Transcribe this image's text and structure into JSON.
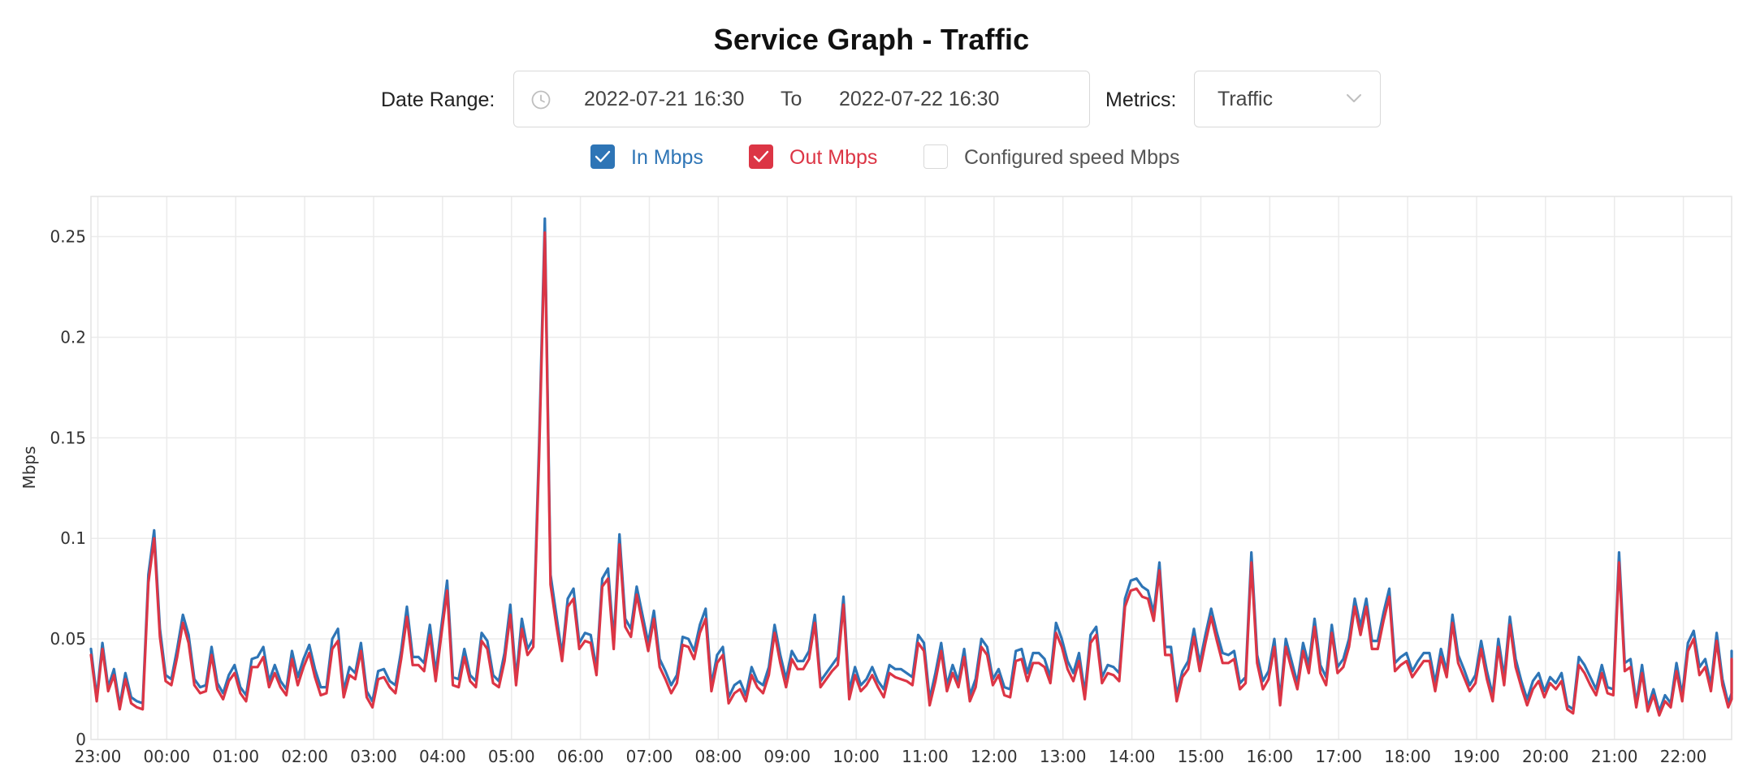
{
  "title": "Service Graph - Traffic",
  "controls": {
    "date_range_label": "Date Range:",
    "start_date": "2022-07-21 16:30",
    "to_label": "To",
    "end_date": "2022-07-22 16:30",
    "metrics_label": "Metrics:",
    "metrics_value": "Traffic"
  },
  "legend": [
    {
      "label": "In Mbps",
      "checked": true,
      "color": "#2e75b6"
    },
    {
      "label": "Out Mbps",
      "checked": true,
      "color": "#dc3545"
    },
    {
      "label": "Configured speed Mbps",
      "checked": false,
      "color": "#d9d9d9"
    }
  ],
  "colors": {
    "in": "#2e75b6",
    "out": "#dc3545",
    "grid": "#ebebeb"
  },
  "chart_data": {
    "type": "line",
    "title": "Service Graph - Traffic",
    "xlabel": "",
    "ylabel": "Mbps",
    "ylim": [
      0,
      0.27
    ],
    "yticks": [
      {
        "value": 0,
        "label": "0"
      },
      {
        "value": 0.05,
        "label": "0.05"
      },
      {
        "value": 0.1,
        "label": "0.1"
      },
      {
        "value": 0.15,
        "label": "0.15"
      },
      {
        "value": 0.2,
        "label": "0.2"
      },
      {
        "value": 0.25,
        "label": "0.25"
      }
    ],
    "x_start_hour": -1.1,
    "x_end_hour": 22.7,
    "x_step_minutes": 5,
    "xticks": [
      {
        "hour": -1,
        "label": "23:00"
      },
      {
        "hour": 0,
        "label": "00:00"
      },
      {
        "hour": 1,
        "label": "01:00"
      },
      {
        "hour": 2,
        "label": "02:00"
      },
      {
        "hour": 3,
        "label": "03:00"
      },
      {
        "hour": 4,
        "label": "04:00"
      },
      {
        "hour": 5,
        "label": "05:00"
      },
      {
        "hour": 6,
        "label": "06:00"
      },
      {
        "hour": 7,
        "label": "07:00"
      },
      {
        "hour": 8,
        "label": "08:00"
      },
      {
        "hour": 9,
        "label": "09:00"
      },
      {
        "hour": 10,
        "label": "10:00"
      },
      {
        "hour": 11,
        "label": "11:00"
      },
      {
        "hour": 12,
        "label": "12:00"
      },
      {
        "hour": 13,
        "label": "13:00"
      },
      {
        "hour": 14,
        "label": "14:00"
      },
      {
        "hour": 15,
        "label": "15:00"
      },
      {
        "hour": 16,
        "label": "16:00"
      },
      {
        "hour": 17,
        "label": "17:00"
      },
      {
        "hour": 18,
        "label": "18:00"
      },
      {
        "hour": 19,
        "label": "19:00"
      },
      {
        "hour": 20,
        "label": "20:00"
      },
      {
        "hour": 21,
        "label": "21:00"
      },
      {
        "hour": 22,
        "label": "22:00"
      }
    ],
    "series": [
      {
        "name": "In Mbps",
        "color": "#2e75b6",
        "values": [
          0.045,
          0.021,
          0.048,
          0.026,
          0.035,
          0.017,
          0.033,
          0.021,
          0.019,
          0.018,
          0.082,
          0.104,
          0.055,
          0.032,
          0.03,
          0.045,
          0.062,
          0.052,
          0.03,
          0.026,
          0.027,
          0.046,
          0.028,
          0.023,
          0.032,
          0.037,
          0.026,
          0.022,
          0.04,
          0.041,
          0.046,
          0.029,
          0.037,
          0.029,
          0.025,
          0.044,
          0.031,
          0.04,
          0.047,
          0.035,
          0.026,
          0.026,
          0.05,
          0.055,
          0.024,
          0.036,
          0.033,
          0.048,
          0.024,
          0.019,
          0.034,
          0.035,
          0.029,
          0.027,
          0.044,
          0.066,
          0.041,
          0.041,
          0.038,
          0.057,
          0.033,
          0.056,
          0.079,
          0.031,
          0.03,
          0.045,
          0.032,
          0.029,
          0.053,
          0.049,
          0.032,
          0.029,
          0.043,
          0.067,
          0.03,
          0.06,
          0.045,
          0.05,
          0.146,
          0.259,
          0.082,
          0.062,
          0.042,
          0.07,
          0.075,
          0.048,
          0.053,
          0.052,
          0.035,
          0.08,
          0.085,
          0.049,
          0.102,
          0.06,
          0.055,
          0.076,
          0.062,
          0.048,
          0.064,
          0.04,
          0.034,
          0.027,
          0.032,
          0.051,
          0.05,
          0.044,
          0.057,
          0.065,
          0.027,
          0.042,
          0.046,
          0.021,
          0.027,
          0.029,
          0.022,
          0.036,
          0.029,
          0.027,
          0.036,
          0.057,
          0.042,
          0.03,
          0.044,
          0.039,
          0.039,
          0.044,
          0.062,
          0.029,
          0.033,
          0.037,
          0.041,
          0.071,
          0.024,
          0.036,
          0.027,
          0.03,
          0.036,
          0.029,
          0.025,
          0.037,
          0.035,
          0.035,
          0.033,
          0.031,
          0.052,
          0.048,
          0.02,
          0.033,
          0.048,
          0.027,
          0.037,
          0.029,
          0.045,
          0.022,
          0.03,
          0.05,
          0.046,
          0.03,
          0.035,
          0.026,
          0.025,
          0.044,
          0.045,
          0.033,
          0.043,
          0.043,
          0.04,
          0.031,
          0.058,
          0.05,
          0.039,
          0.033,
          0.043,
          0.023,
          0.052,
          0.056,
          0.031,
          0.037,
          0.036,
          0.033,
          0.07,
          0.079,
          0.08,
          0.076,
          0.074,
          0.063,
          0.088,
          0.046,
          0.046,
          0.022,
          0.034,
          0.039,
          0.055,
          0.038,
          0.052,
          0.065,
          0.053,
          0.043,
          0.042,
          0.044,
          0.028,
          0.031,
          0.093,
          0.042,
          0.029,
          0.034,
          0.05,
          0.02,
          0.05,
          0.039,
          0.028,
          0.048,
          0.037,
          0.06,
          0.037,
          0.031,
          0.057,
          0.036,
          0.04,
          0.05,
          0.07,
          0.056,
          0.07,
          0.049,
          0.049,
          0.063,
          0.075,
          0.038,
          0.041,
          0.043,
          0.034,
          0.039,
          0.043,
          0.043,
          0.028,
          0.045,
          0.034,
          0.062,
          0.042,
          0.035,
          0.027,
          0.032,
          0.049,
          0.034,
          0.022,
          0.05,
          0.031,
          0.061,
          0.04,
          0.029,
          0.02,
          0.029,
          0.033,
          0.024,
          0.031,
          0.028,
          0.033,
          0.017,
          0.015,
          0.041,
          0.037,
          0.031,
          0.025,
          0.037,
          0.026,
          0.025,
          0.093,
          0.038,
          0.04,
          0.018,
          0.037,
          0.016,
          0.025,
          0.014,
          0.022,
          0.018,
          0.038,
          0.022,
          0.048,
          0.054,
          0.036,
          0.04,
          0.027,
          0.053,
          0.03,
          0.018,
          0.023,
          0.044,
          0.044
        ]
      },
      {
        "name": "Out Mbps",
        "color": "#dc3545",
        "values": [
          0.042,
          0.019,
          0.045,
          0.024,
          0.032,
          0.015,
          0.03,
          0.018,
          0.016,
          0.015,
          0.078,
          0.1,
          0.051,
          0.029,
          0.027,
          0.041,
          0.058,
          0.048,
          0.027,
          0.023,
          0.024,
          0.042,
          0.025,
          0.02,
          0.029,
          0.033,
          0.023,
          0.019,
          0.036,
          0.036,
          0.041,
          0.026,
          0.033,
          0.026,
          0.022,
          0.04,
          0.027,
          0.036,
          0.043,
          0.031,
          0.022,
          0.023,
          0.045,
          0.049,
          0.021,
          0.032,
          0.03,
          0.044,
          0.021,
          0.016,
          0.03,
          0.031,
          0.026,
          0.023,
          0.04,
          0.061,
          0.037,
          0.037,
          0.034,
          0.052,
          0.029,
          0.052,
          0.074,
          0.027,
          0.026,
          0.041,
          0.029,
          0.026,
          0.049,
          0.045,
          0.028,
          0.026,
          0.039,
          0.062,
          0.027,
          0.055,
          0.042,
          0.046,
          0.14,
          0.252,
          0.077,
          0.057,
          0.039,
          0.066,
          0.07,
          0.045,
          0.049,
          0.048,
          0.032,
          0.076,
          0.08,
          0.045,
          0.097,
          0.056,
          0.051,
          0.072,
          0.058,
          0.044,
          0.06,
          0.036,
          0.03,
          0.023,
          0.028,
          0.047,
          0.046,
          0.04,
          0.053,
          0.06,
          0.024,
          0.038,
          0.042,
          0.018,
          0.023,
          0.025,
          0.019,
          0.032,
          0.026,
          0.023,
          0.032,
          0.053,
          0.038,
          0.026,
          0.04,
          0.035,
          0.035,
          0.04,
          0.058,
          0.026,
          0.03,
          0.034,
          0.037,
          0.067,
          0.02,
          0.032,
          0.024,
          0.027,
          0.032,
          0.026,
          0.021,
          0.033,
          0.031,
          0.03,
          0.029,
          0.027,
          0.048,
          0.044,
          0.017,
          0.029,
          0.044,
          0.024,
          0.033,
          0.026,
          0.041,
          0.019,
          0.026,
          0.046,
          0.042,
          0.027,
          0.032,
          0.022,
          0.021,
          0.039,
          0.04,
          0.029,
          0.038,
          0.038,
          0.036,
          0.028,
          0.053,
          0.046,
          0.035,
          0.029,
          0.039,
          0.02,
          0.048,
          0.052,
          0.028,
          0.033,
          0.032,
          0.029,
          0.066,
          0.074,
          0.075,
          0.071,
          0.07,
          0.059,
          0.084,
          0.042,
          0.042,
          0.019,
          0.031,
          0.035,
          0.051,
          0.034,
          0.048,
          0.061,
          0.049,
          0.038,
          0.038,
          0.04,
          0.025,
          0.028,
          0.088,
          0.038,
          0.025,
          0.03,
          0.046,
          0.017,
          0.046,
          0.035,
          0.025,
          0.044,
          0.033,
          0.056,
          0.033,
          0.027,
          0.053,
          0.033,
          0.036,
          0.046,
          0.066,
          0.052,
          0.066,
          0.045,
          0.045,
          0.059,
          0.071,
          0.034,
          0.037,
          0.039,
          0.031,
          0.035,
          0.039,
          0.039,
          0.024,
          0.041,
          0.031,
          0.058,
          0.038,
          0.031,
          0.024,
          0.028,
          0.045,
          0.03,
          0.019,
          0.046,
          0.027,
          0.057,
          0.036,
          0.026,
          0.017,
          0.025,
          0.029,
          0.021,
          0.028,
          0.025,
          0.029,
          0.015,
          0.013,
          0.037,
          0.033,
          0.027,
          0.022,
          0.033,
          0.023,
          0.022,
          0.088,
          0.034,
          0.036,
          0.016,
          0.033,
          0.014,
          0.022,
          0.012,
          0.019,
          0.016,
          0.034,
          0.019,
          0.044,
          0.05,
          0.032,
          0.036,
          0.024,
          0.049,
          0.027,
          0.016,
          0.02,
          0.04,
          0.04
        ]
      }
    ]
  }
}
